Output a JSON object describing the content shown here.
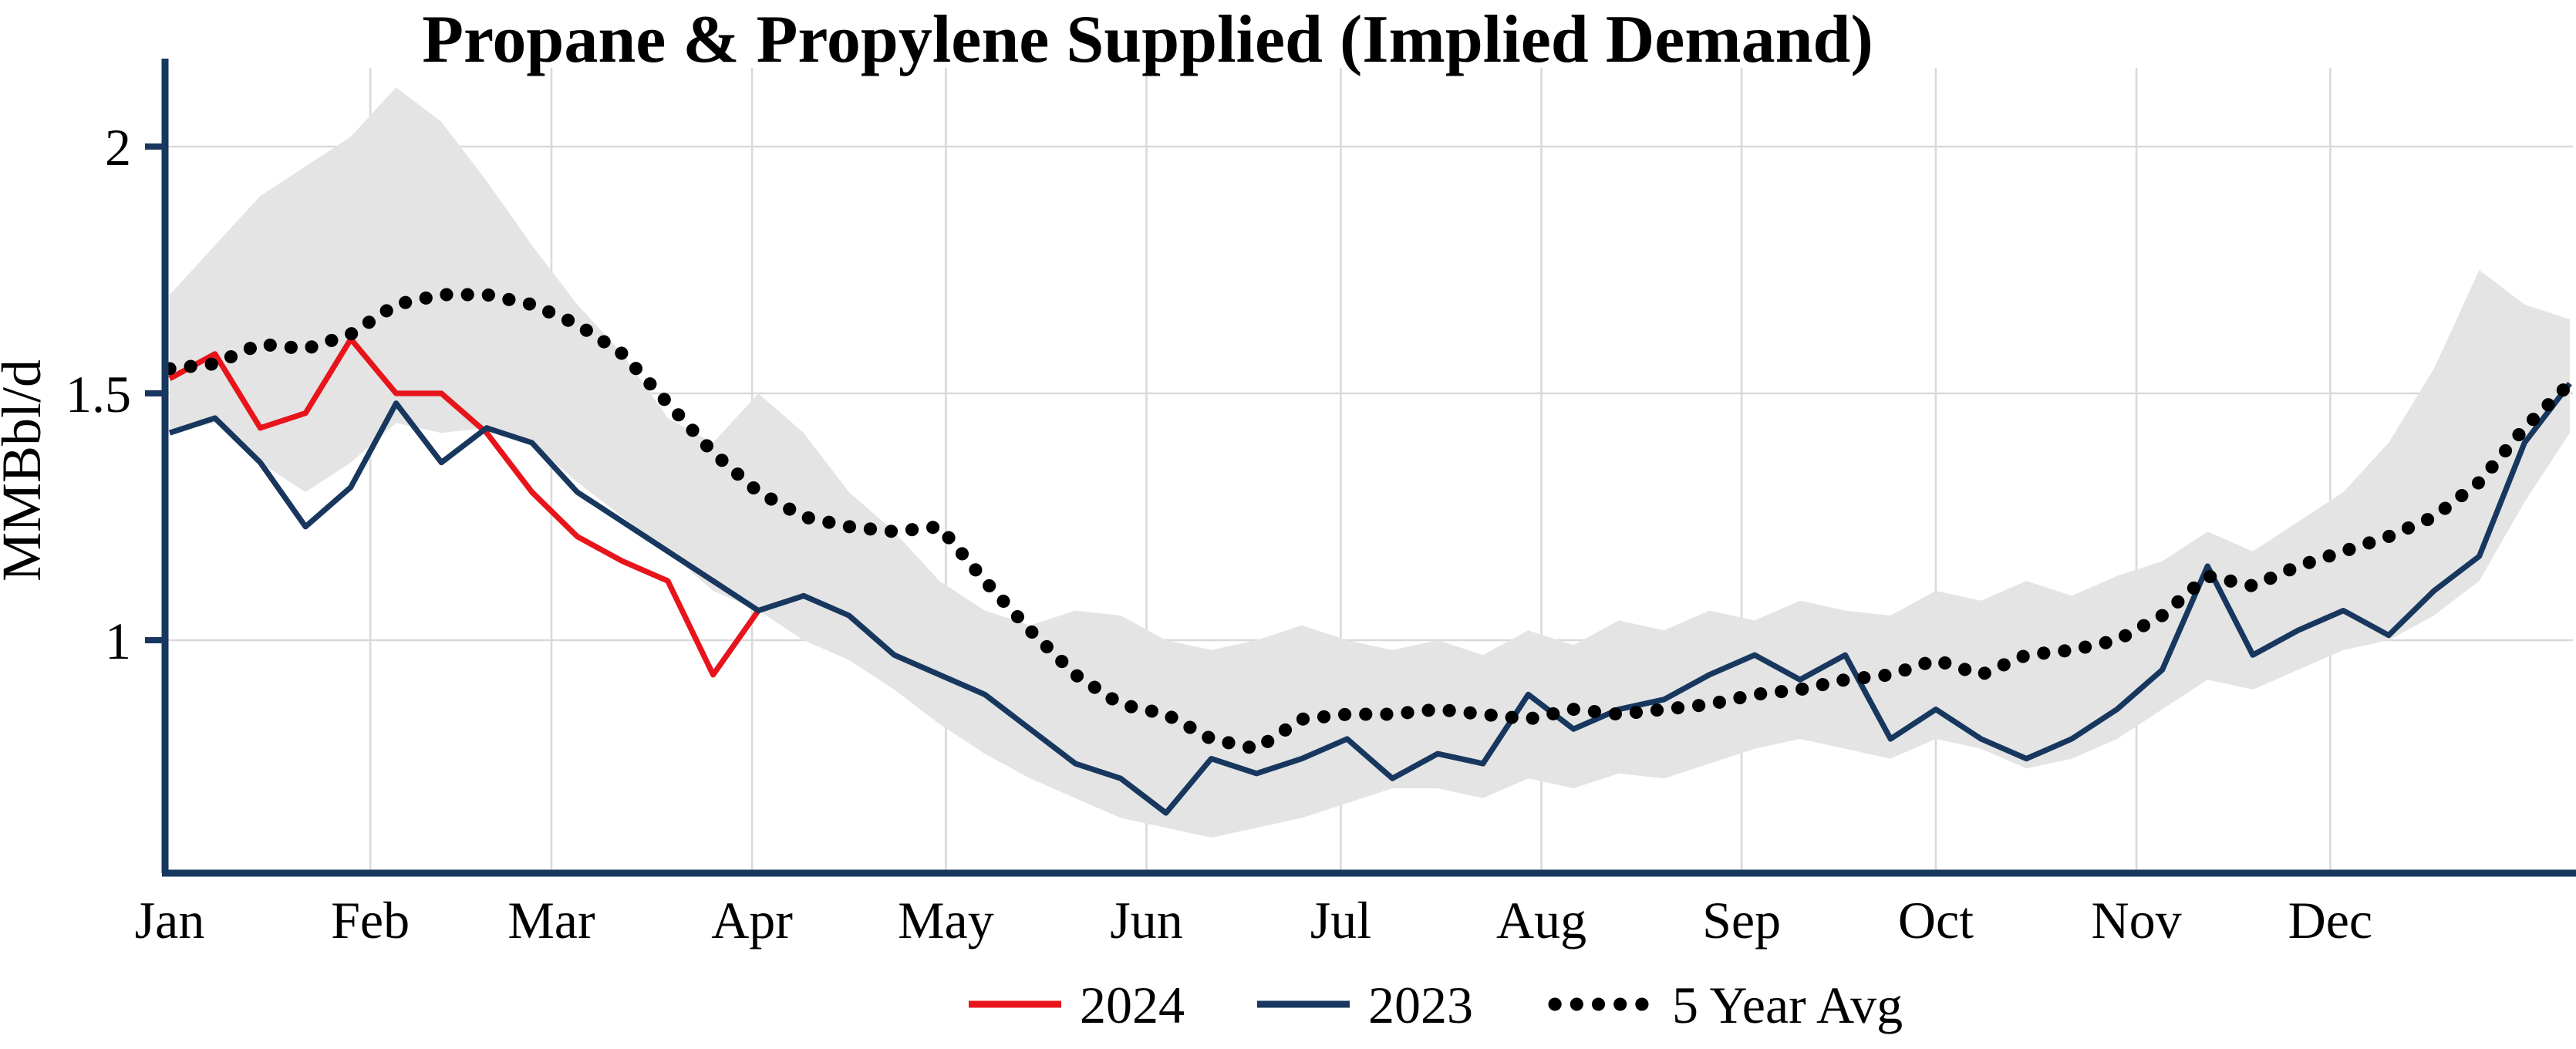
{
  "chart_data": {
    "type": "line",
    "title": "Propane & Propylene Supplied (Implied Demand)",
    "ylabel": "MMBbl/d",
    "yticks": [
      1,
      1.5,
      2
    ],
    "ytick_labels": [
      "1",
      "1.5",
      "2"
    ],
    "ylim": [
      0.53,
      2.16
    ],
    "x_unit": "weekly, Jan-Dec",
    "grid": true,
    "legend_position": "bottom-center",
    "months": [
      "Jan",
      "Feb",
      "Mar",
      "Apr",
      "May",
      "Jun",
      "Jul",
      "Aug",
      "Sep",
      "Oct",
      "Nov",
      "Dec"
    ],
    "month_week_positions": [
      0,
      4.43,
      8.43,
      12.86,
      17.14,
      21.57,
      25.86,
      30.29,
      34.71,
      39.0,
      43.43,
      47.71
    ],
    "series": [
      {
        "name": "2024",
        "color": "#e8141b",
        "style": "solid",
        "values": [
          1.53,
          1.58,
          1.43,
          1.46,
          1.61,
          1.5,
          1.5,
          1.42,
          1.3,
          1.21,
          1.16,
          1.12,
          0.93,
          1.06
        ]
      },
      {
        "name": "2023",
        "color": "#17375e",
        "style": "solid",
        "values": [
          1.42,
          1.45,
          1.36,
          1.23,
          1.31,
          1.48,
          1.36,
          1.43,
          1.4,
          1.3,
          1.24,
          1.18,
          1.12,
          1.06,
          1.09,
          1.05,
          0.97,
          0.93,
          0.89,
          0.82,
          0.75,
          0.72,
          0.65,
          0.76,
          0.73,
          0.76,
          0.8,
          0.72,
          0.77,
          0.75,
          0.89,
          0.82,
          0.86,
          0.88,
          0.93,
          0.97,
          0.92,
          0.97,
          0.8,
          0.86,
          0.8,
          0.76,
          0.8,
          0.86,
          0.94,
          1.15,
          0.97,
          1.02,
          1.06,
          1.01,
          1.1,
          1.17,
          1.4,
          1.52
        ]
      },
      {
        "name": "5 Year Avg",
        "color": "#000000",
        "style": "dotted",
        "values": [
          1.55,
          1.56,
          1.6,
          1.59,
          1.62,
          1.68,
          1.7,
          1.7,
          1.68,
          1.64,
          1.58,
          1.48,
          1.38,
          1.3,
          1.25,
          1.23,
          1.22,
          1.23,
          1.12,
          1.02,
          0.93,
          0.87,
          0.85,
          0.8,
          0.78,
          0.84,
          0.85,
          0.85,
          0.86,
          0.85,
          0.84,
          0.86,
          0.85,
          0.86,
          0.87,
          0.89,
          0.9,
          0.92,
          0.93,
          0.96,
          0.93,
          0.97,
          0.98,
          1.0,
          1.05,
          1.13,
          1.11,
          1.15,
          1.18,
          1.21,
          1.25,
          1.32,
          1.43,
          1.52
        ]
      }
    ],
    "band": {
      "color": "#e4e4e4",
      "upper": [
        1.7,
        1.8,
        1.9,
        1.96,
        2.02,
        2.12,
        2.05,
        1.93,
        1.8,
        1.68,
        1.58,
        1.45,
        1.4,
        1.5,
        1.42,
        1.3,
        1.22,
        1.12,
        1.06,
        1.03,
        1.06,
        1.05,
        1.0,
        0.98,
        1.0,
        1.03,
        1.0,
        0.98,
        1.0,
        0.97,
        1.02,
        0.99,
        1.04,
        1.02,
        1.06,
        1.04,
        1.08,
        1.06,
        1.05,
        1.1,
        1.08,
        1.12,
        1.09,
        1.13,
        1.16,
        1.22,
        1.18,
        1.24,
        1.3,
        1.4,
        1.55,
        1.75,
        1.68,
        1.65
      ],
      "lower": [
        1.42,
        1.44,
        1.36,
        1.3,
        1.36,
        1.44,
        1.42,
        1.43,
        1.4,
        1.32,
        1.25,
        1.18,
        1.1,
        1.06,
        1.0,
        0.96,
        0.9,
        0.83,
        0.77,
        0.72,
        0.68,
        0.64,
        0.62,
        0.6,
        0.62,
        0.64,
        0.67,
        0.7,
        0.7,
        0.68,
        0.72,
        0.7,
        0.73,
        0.72,
        0.75,
        0.78,
        0.8,
        0.78,
        0.76,
        0.8,
        0.78,
        0.74,
        0.76,
        0.8,
        0.86,
        0.92,
        0.9,
        0.94,
        0.98,
        1.0,
        1.05,
        1.12,
        1.28,
        1.42
      ]
    }
  },
  "colors": {
    "axis": "#17375e",
    "gridline": "#d9d9d9",
    "background": "#ffffff",
    "text": "#000000"
  }
}
